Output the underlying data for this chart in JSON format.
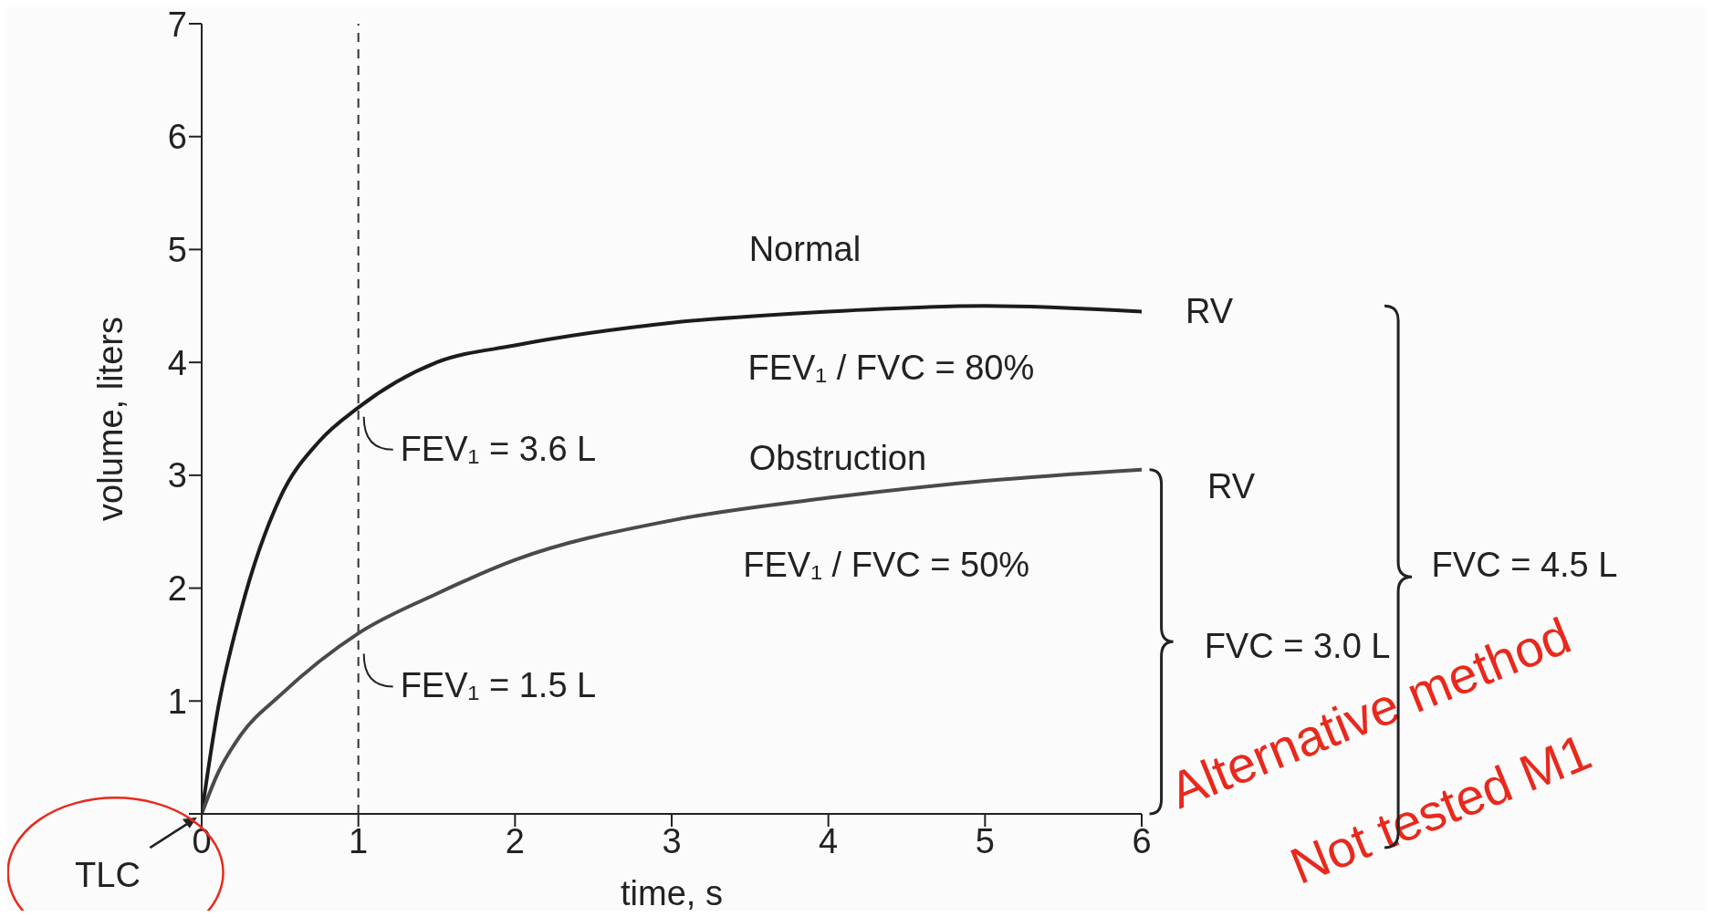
{
  "chart_data": {
    "type": "line",
    "xlabel": "time, s",
    "ylabel": "volume, liters",
    "x": [
      0,
      0.1,
      0.25,
      0.5,
      0.75,
      1,
      1.5,
      2,
      3,
      4,
      5,
      6
    ],
    "series": [
      {
        "name": "Normal",
        "color": "#1c1c1c",
        "values": [
          0,
          0.9,
          1.8,
          2.8,
          3.3,
          3.6,
          4.0,
          4.15,
          4.35,
          4.45,
          4.5,
          4.45
        ]
      },
      {
        "name": "Obstruction",
        "color": "#4a4a4a",
        "values": [
          0,
          0.35,
          0.7,
          1.05,
          1.35,
          1.6,
          1.95,
          2.25,
          2.6,
          2.8,
          2.95,
          3.05
        ]
      }
    ],
    "xlim": [
      0,
      6
    ],
    "xticks": [
      0,
      1,
      2,
      3,
      4,
      5,
      6
    ],
    "ylim": [
      0,
      7
    ],
    "yticks": [
      {
        "value": 0,
        "label": null
      },
      1,
      2,
      3,
      4,
      5,
      6,
      7
    ],
    "marker": "none",
    "line_style": "solid",
    "ref_lines": [
      {
        "axis": "x",
        "value": 1,
        "line_style": "dashed",
        "color": "#333333"
      }
    ],
    "annotations": [
      "FEV₁ / FVC = 80%",
      {
        "text": "FEV₁ = 3.6 L",
        "x": 1,
        "y": 3.6
      },
      "FEV₁ / FVC = 50%",
      {
        "text": "FEV₁ = 1.5 L",
        "x": 1,
        "y": 1.5
      },
      "RV",
      "RV",
      "FVC = 4.5 L",
      "FVC = 3.0 L",
      "TLC",
      "Alternative method",
      "Not tested M1"
    ]
  }
}
